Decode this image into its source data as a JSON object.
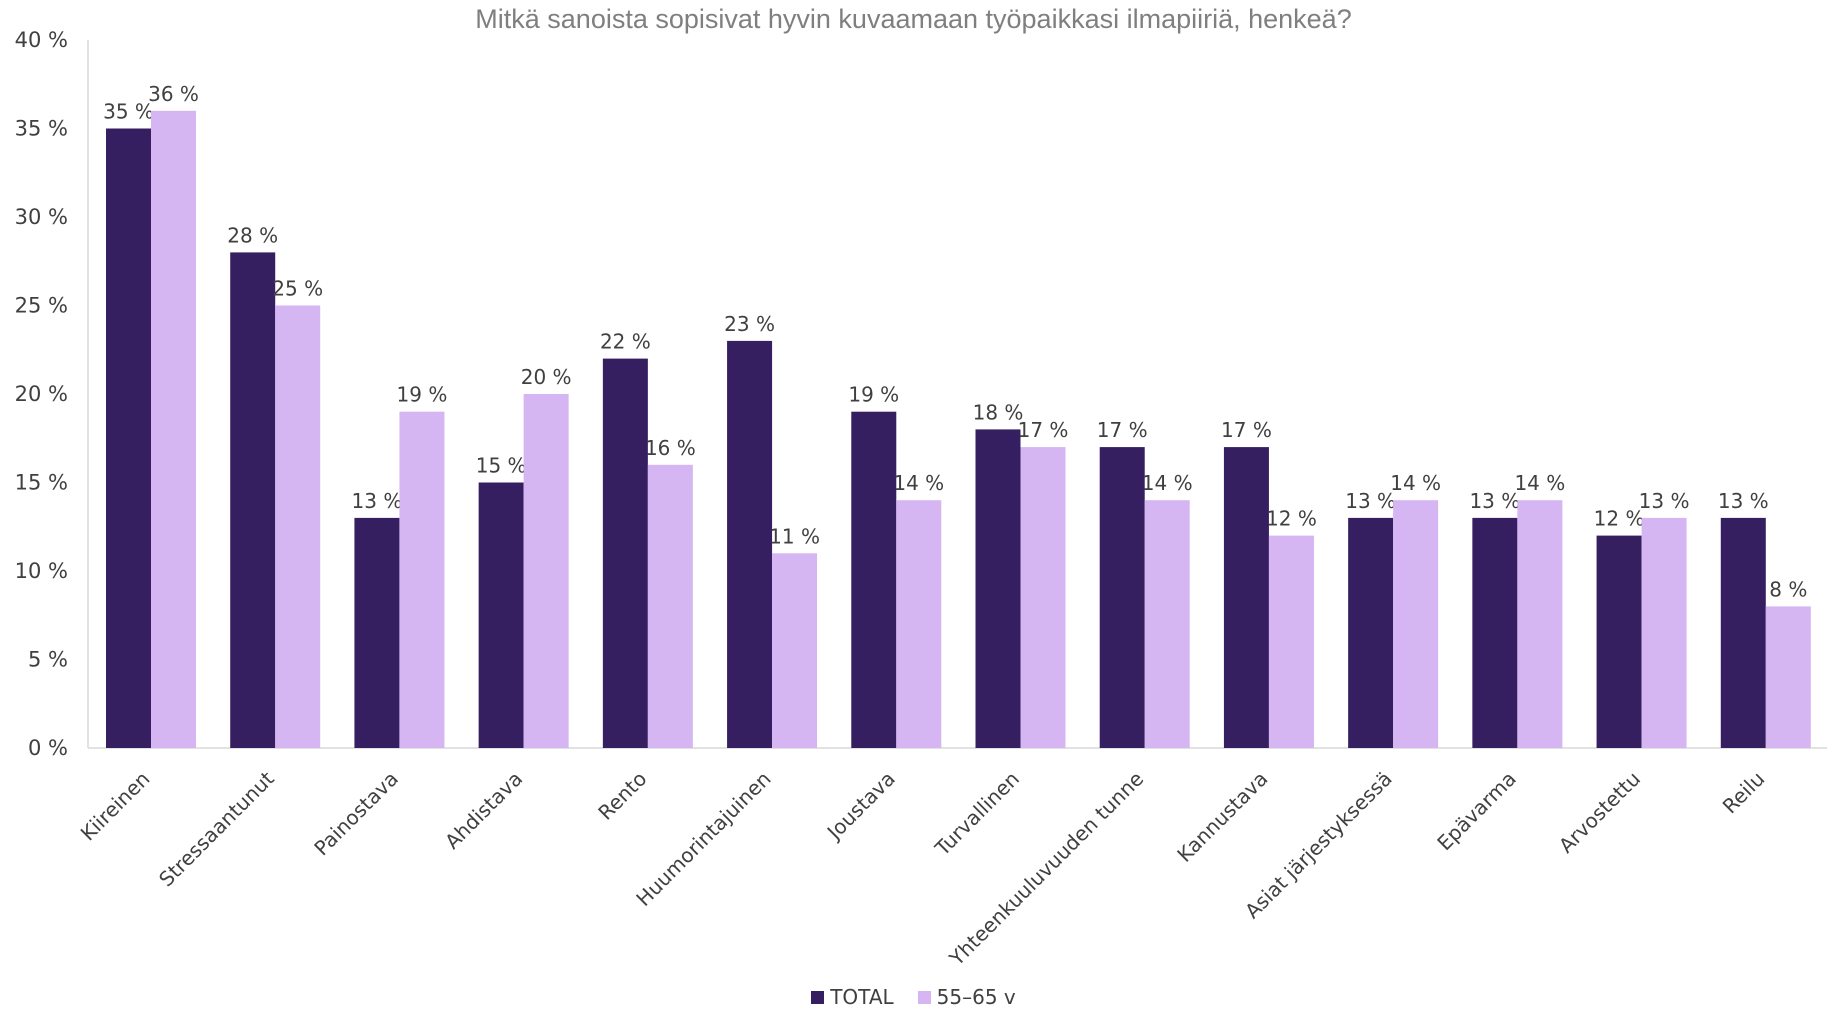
{
  "chart_data": {
    "type": "bar",
    "title": "Mitkä sanoista sopisivat hyvin kuvaamaan työpaikkasi ilmapiiriä, henkeä?",
    "categories": [
      "Kiireinen",
      "Stressaantunut",
      "Painostava",
      "Ahdistava",
      "Rento",
      "Huumorintajuinen",
      "Joustava",
      "Turvallinen",
      "Yhteenkuuluvuuden tunne",
      "Kannustava",
      "Asiat järjestyksessä",
      "Epävarma",
      "Arvostettu",
      "Reilu"
    ],
    "series": [
      {
        "name": "TOTAL",
        "color": "#351f61",
        "values": [
          35,
          28,
          13,
          15,
          22,
          23,
          19,
          18,
          17,
          17,
          13,
          13,
          12,
          13
        ],
        "labels": [
          "35 %",
          "28 %",
          "13 %",
          "15 %",
          "22 %",
          "23 %",
          "19 %",
          "18 %",
          "17 %",
          "17 %",
          "13 %",
          "13 %",
          "12 %",
          "13 %"
        ]
      },
      {
        "name": "55–65 v",
        "color": "#d5b5f2",
        "values": [
          36,
          25,
          19,
          20,
          16,
          11,
          14,
          17,
          14,
          12,
          14,
          14,
          13,
          8
        ],
        "labels": [
          "36 %",
          "25 %",
          "19 %",
          "20 %",
          "16 %",
          "11 %",
          "14 %",
          "17 %",
          "14 %",
          "12 %",
          "14 %",
          "14 %",
          "13 %",
          "8 %"
        ]
      }
    ],
    "ylim": [
      0,
      40
    ],
    "yticks": [
      0,
      5,
      10,
      15,
      20,
      25,
      30,
      35,
      40
    ],
    "ytick_labels": [
      "0 %",
      "5 %",
      "10 %",
      "15 %",
      "20 %",
      "25 %",
      "30 %",
      "35 %",
      "40 %"
    ],
    "xlabel": "",
    "ylabel": "",
    "grid": false,
    "legend_position": "bottom"
  }
}
